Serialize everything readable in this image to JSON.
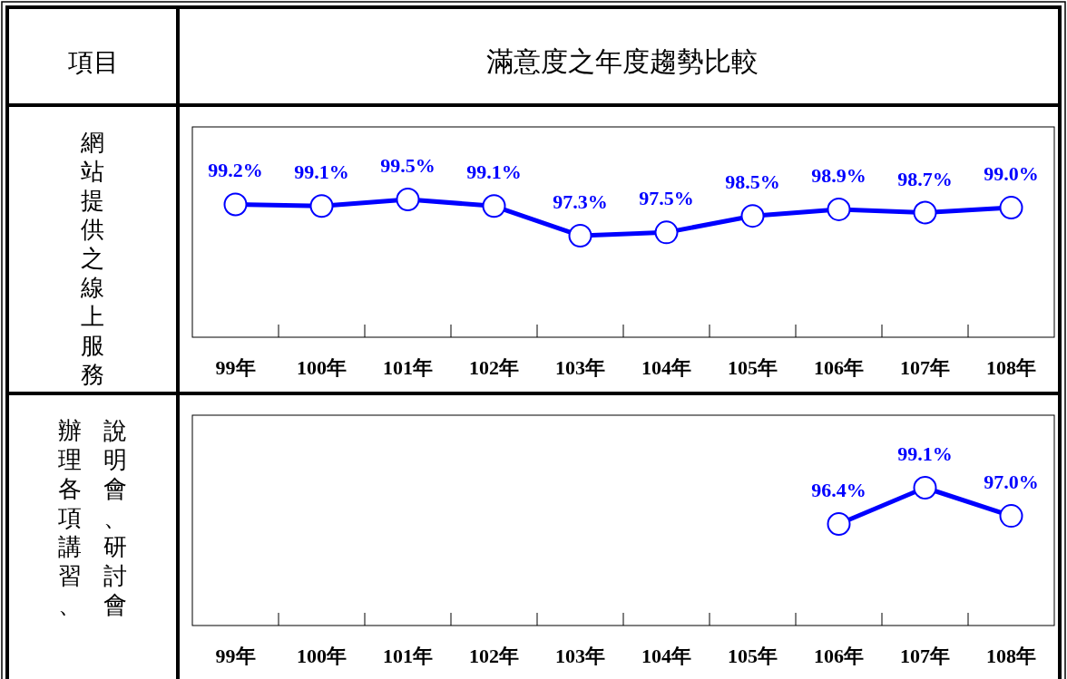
{
  "chart_data": [
    {
      "type": "line",
      "title": "滿意度之年度趨勢比較",
      "annotations": [
        "項目"
      ],
      "ylabel": "網站提供之線上服務",
      "categories": [
        "99年",
        "100年",
        "101年",
        "102年",
        "103年",
        "104年",
        "105年",
        "106年",
        "107年",
        "108年"
      ],
      "series": [
        {
          "color": "#0000ff",
          "values": [
            99.2,
            99.1,
            99.5,
            99.1,
            97.3,
            97.5,
            98.5,
            98.9,
            98.7,
            99.0
          ],
          "value_labels": [
            "99.2%",
            "99.1%",
            "99.5%",
            "99.1%",
            "97.3%",
            "97.5%",
            "98.5%",
            "98.9%",
            "98.7%",
            "99.0%"
          ]
        }
      ],
      "marker": "circle",
      "line_style": "solid",
      "tick_labels": "x"
    },
    {
      "type": "line",
      "annotations": [
        "辦理各項講習、",
        "說明會、研討會"
      ],
      "categories": [
        "99年",
        "100年",
        "101年",
        "102年",
        "103年",
        "104年",
        "105年",
        "106年",
        "107年",
        "108年"
      ],
      "series": [
        {
          "color": "#0000ff",
          "values": [
            null,
            null,
            null,
            null,
            null,
            null,
            null,
            96.4,
            99.1,
            97.0
          ],
          "value_labels": [
            null,
            null,
            null,
            null,
            null,
            null,
            null,
            "96.4%",
            "99.1%",
            "97.0%"
          ]
        }
      ],
      "marker": "circle",
      "line_style": "solid",
      "tick_labels": "x"
    }
  ]
}
